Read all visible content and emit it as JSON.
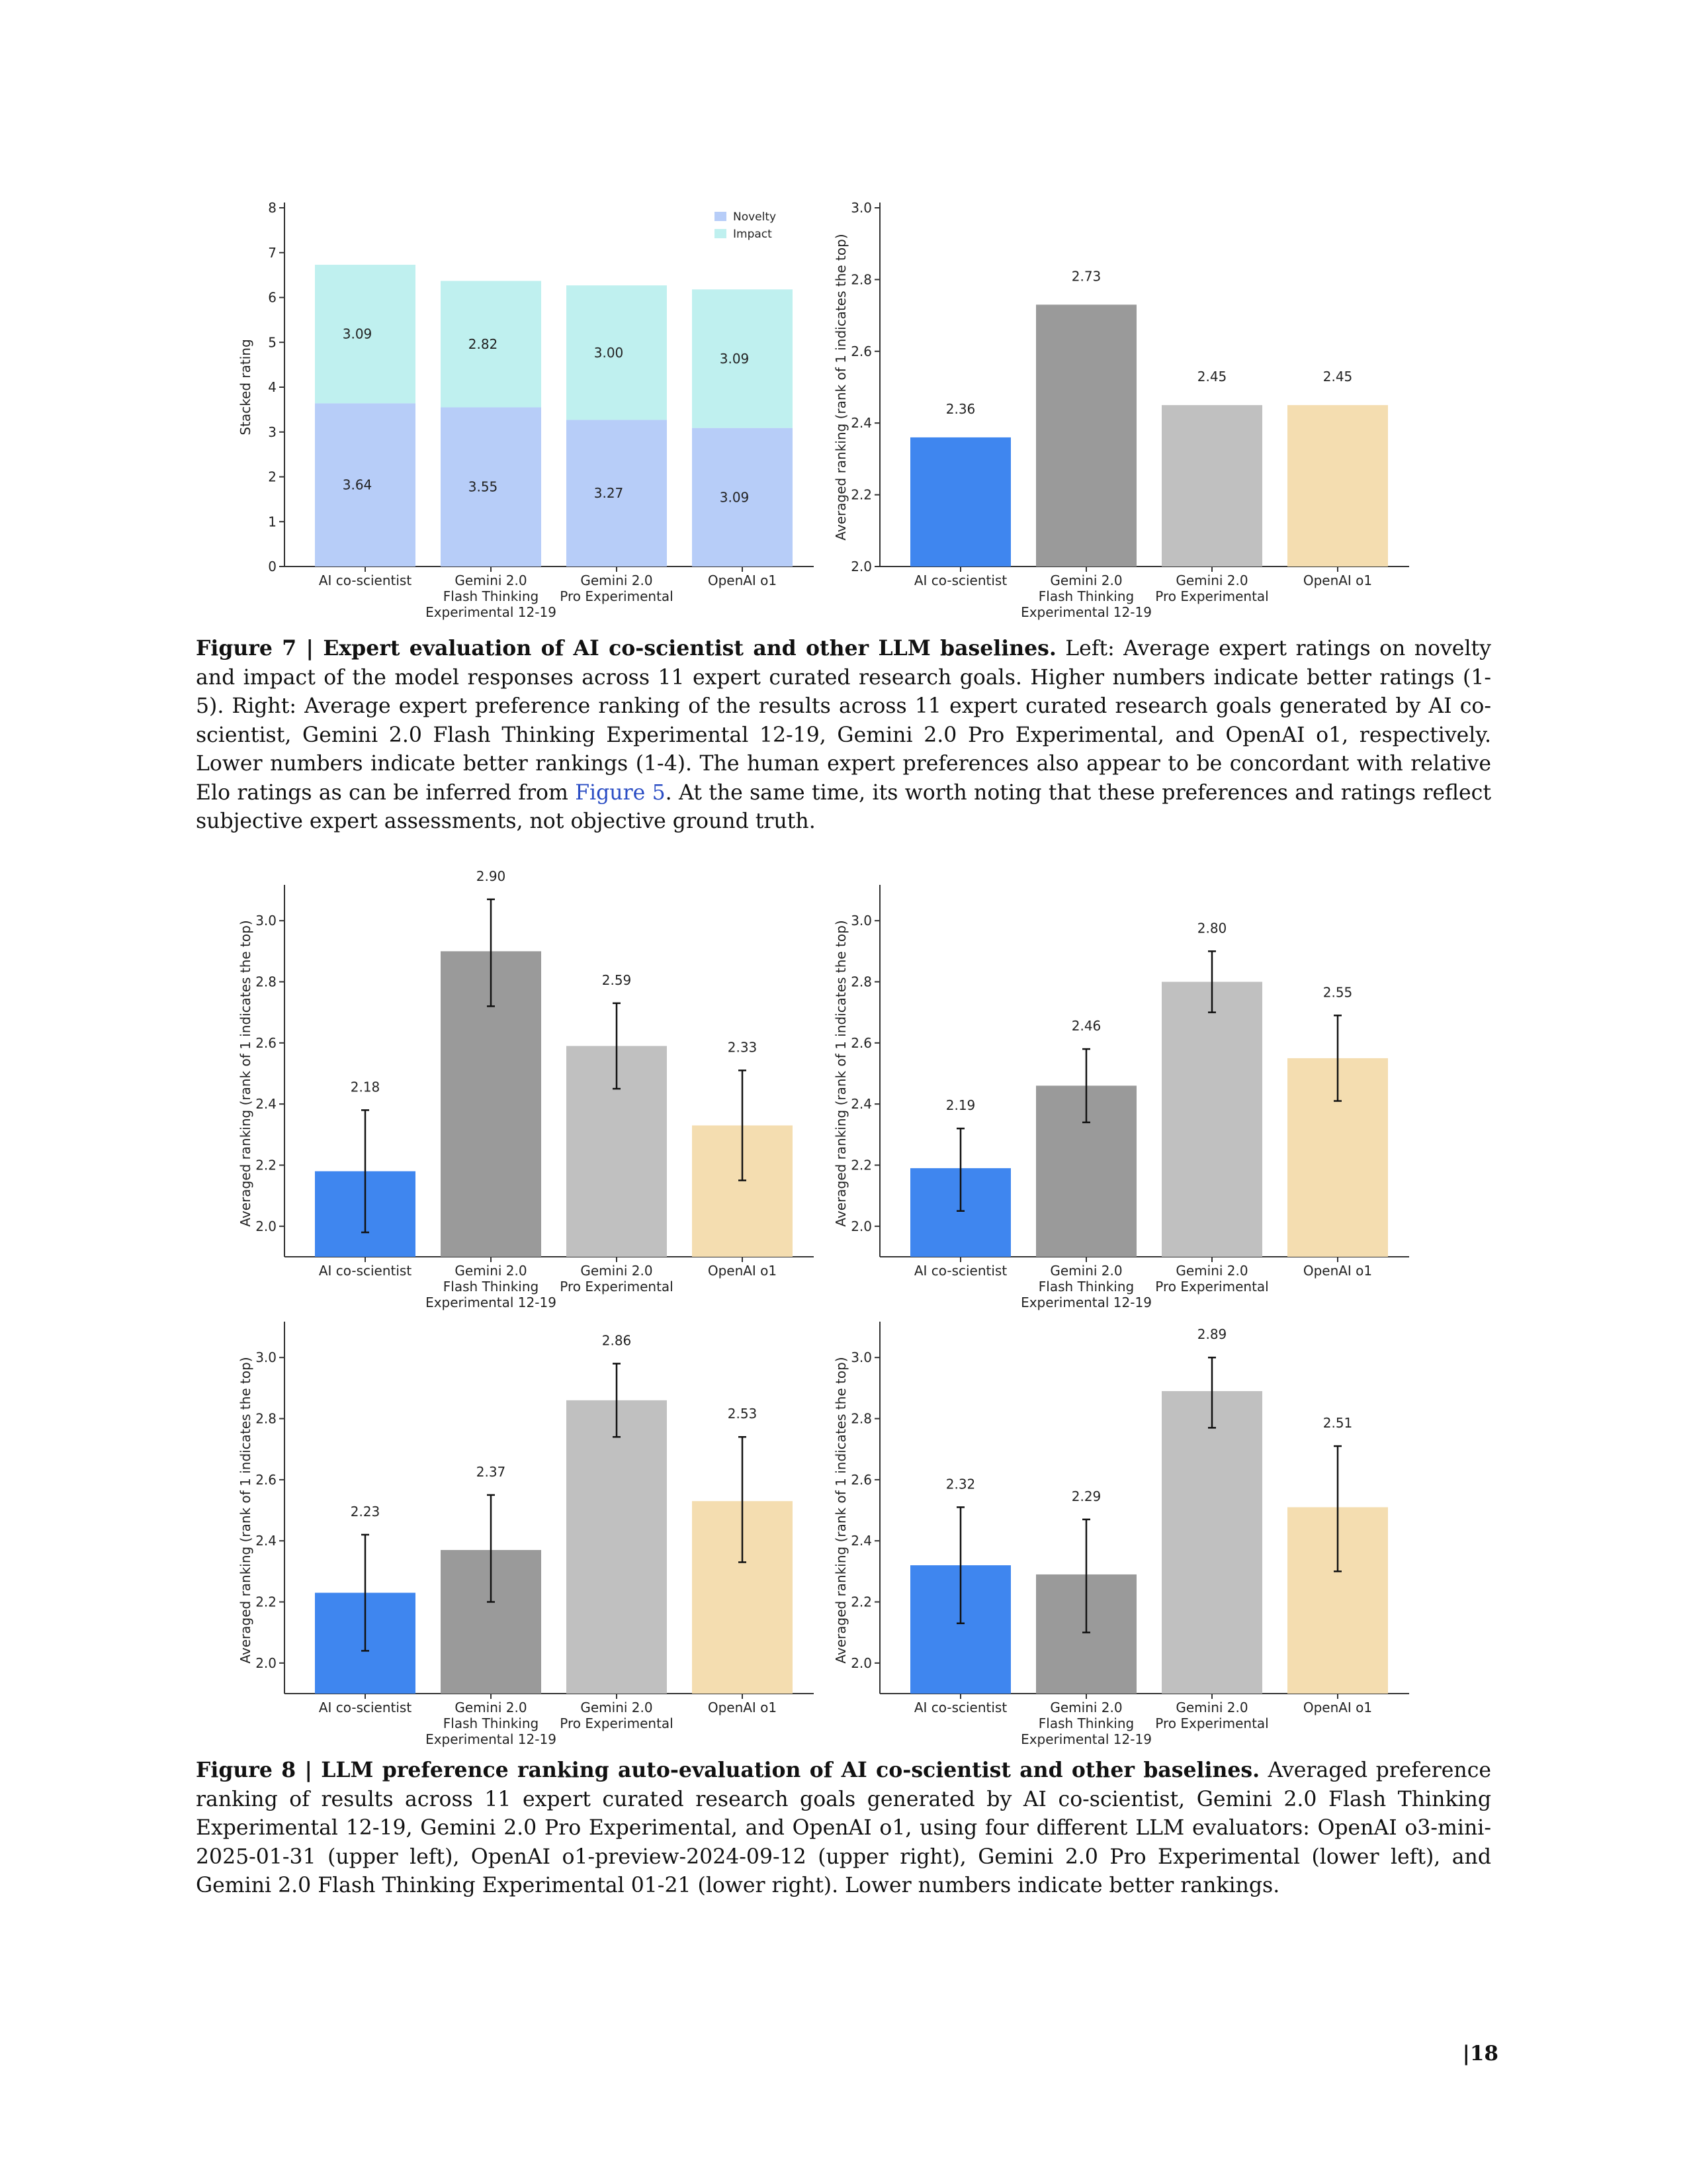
{
  "colors": {
    "ai_co_scientist": "#3f86ef",
    "flash_thinking": "#9a9a9a",
    "pro_experimental": "#c0c0c0",
    "openai_o1": "#f4ddb0",
    "novelty": "#b7cdf8",
    "impact": "#bff0ef"
  },
  "categories": [
    [
      "AI co-scientist"
    ],
    [
      "Gemini 2.0",
      "Flash Thinking",
      "Experimental 12-19"
    ],
    [
      "Gemini 2.0",
      "Pro Experimental"
    ],
    [
      "OpenAI o1"
    ]
  ],
  "chart_data": [
    {
      "type": "bar",
      "stacked": true,
      "ylabel": "Stacked rating",
      "ylim": [
        0,
        8
      ],
      "yticks": [
        "0",
        "1",
        "2",
        "3",
        "4",
        "5",
        "6",
        "7",
        "8"
      ],
      "legend_position": "top-right",
      "series": [
        {
          "name": "Novelty",
          "values": [
            3.64,
            3.55,
            3.27,
            3.09
          ],
          "labels": [
            "3.64",
            "3.55",
            "3.27",
            "3.09"
          ]
        },
        {
          "name": "Impact",
          "values": [
            3.09,
            2.82,
            3.0,
            3.09
          ],
          "labels": [
            "3.09",
            "2.82",
            "3.00",
            "3.09"
          ]
        }
      ]
    },
    {
      "type": "bar",
      "ylabel": "Averaged ranking (rank of 1 indicates the top)",
      "ylim": [
        2.0,
        3.0
      ],
      "yticks": [
        "2.0",
        "2.2",
        "2.4",
        "2.6",
        "2.8",
        "3.0"
      ],
      "values": [
        2.36,
        2.73,
        2.45,
        2.45
      ],
      "labels": [
        "2.36",
        "2.73",
        "2.45",
        "2.45"
      ]
    },
    {
      "type": "bar",
      "ylabel": "Averaged ranking (rank of 1 indicates the top)",
      "ylim": [
        1.9,
        3.1
      ],
      "yticks": [
        "2.0",
        "2.2",
        "2.4",
        "2.6",
        "2.8",
        "3.0"
      ],
      "values": [
        2.18,
        2.9,
        2.59,
        2.33
      ],
      "labels": [
        "2.18",
        "2.90",
        "2.59",
        "2.33"
      ],
      "error_low": [
        1.98,
        2.72,
        2.45,
        2.15
      ],
      "error_high": [
        2.38,
        3.07,
        2.73,
        2.51
      ]
    },
    {
      "type": "bar",
      "ylabel": "Averaged ranking (rank of 1 indicates the top)",
      "ylim": [
        1.9,
        3.1
      ],
      "yticks": [
        "2.0",
        "2.2",
        "2.4",
        "2.6",
        "2.8",
        "3.0"
      ],
      "values": [
        2.19,
        2.46,
        2.8,
        2.55
      ],
      "labels": [
        "2.19",
        "2.46",
        "2.80",
        "2.55"
      ],
      "error_low": [
        2.05,
        2.34,
        2.7,
        2.41
      ],
      "error_high": [
        2.32,
        2.58,
        2.9,
        2.69
      ]
    },
    {
      "type": "bar",
      "ylabel": "Averaged ranking (rank of 1 indicates the top)",
      "ylim": [
        1.9,
        3.1
      ],
      "yticks": [
        "2.0",
        "2.2",
        "2.4",
        "2.6",
        "2.8",
        "3.0"
      ],
      "values": [
        2.23,
        2.37,
        2.86,
        2.53
      ],
      "labels": [
        "2.23",
        "2.37",
        "2.86",
        "2.53"
      ],
      "error_low": [
        2.04,
        2.2,
        2.74,
        2.33
      ],
      "error_high": [
        2.42,
        2.55,
        2.98,
        2.74
      ]
    },
    {
      "type": "bar",
      "ylabel": "Averaged ranking (rank of 1 indicates the top)",
      "ylim": [
        1.9,
        3.1
      ],
      "yticks": [
        "2.0",
        "2.2",
        "2.4",
        "2.6",
        "2.8",
        "3.0"
      ],
      "values": [
        2.32,
        2.29,
        2.89,
        2.51
      ],
      "labels": [
        "2.32",
        "2.29",
        "2.89",
        "2.51"
      ],
      "error_low": [
        2.13,
        2.1,
        2.77,
        2.3
      ],
      "error_high": [
        2.51,
        2.47,
        3.0,
        2.71
      ]
    }
  ],
  "figure7": {
    "label": "Figure 7 | Expert evaluation of AI co-scientist and other LLM baselines.",
    "text1": " Left: Average expert ratings on novelty and impact of the model responses across 11 expert curated research goals. Higher numbers indicate better ratings (1-5). Right: Average expert preference ranking of the results across 11 expert curated research goals generated by AI co-scientist, Gemini 2.0 Flash Thinking Experimental 12-19, Gemini 2.0 Pro Experimental, and OpenAI o1, respectively. Lower numbers indicate better rankings (1-4). The human expert preferences also appear to be concordant with relative Elo ratings as can be inferred from ",
    "ref": "Figure 5",
    "text2": ". At the same time, its worth noting that these preferences and ratings reflect subjective expert assessments, not objective ground truth."
  },
  "figure8": {
    "label": "Figure 8 | LLM preference ranking auto-evaluation of AI co-scientist and other baselines.",
    "text": " Averaged preference ranking of results across 11 expert curated research goals generated by AI co-scientist, Gemini 2.0 Flash Thinking Experimental 12-19, Gemini 2.0 Pro Experimental, and OpenAI o1, using four different LLM evaluators: OpenAI o3-mini-2025-01-31 (upper left), OpenAI o1-preview-2024-09-12 (upper right), Gemini 2.0 Pro Experimental (lower left), and Gemini 2.0 Flash Thinking Experimental 01-21 (lower right). Lower numbers indicate better rankings."
  },
  "page_number": "|18"
}
